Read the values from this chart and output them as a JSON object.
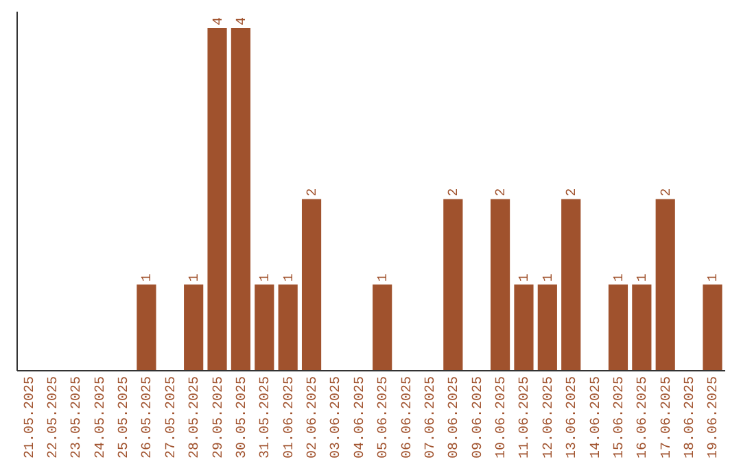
{
  "chart_data": {
    "type": "bar",
    "categories": [
      "21.05.2025",
      "22.05.2025",
      "23.05.2025",
      "24.05.2025",
      "25.05.2025",
      "26.05.2025",
      "27.05.2025",
      "28.05.2025",
      "29.05.2025",
      "30.05.2025",
      "31.05.2025",
      "01.06.2025",
      "02.06.2025",
      "03.06.2025",
      "04.06.2025",
      "05.06.2025",
      "06.06.2025",
      "07.06.2025",
      "08.06.2025",
      "09.06.2025",
      "10.06.2025",
      "11.06.2025",
      "12.06.2025",
      "13.06.2025",
      "14.06.2025",
      "15.06.2025",
      "16.06.2025",
      "17.06.2025",
      "18.06.2025",
      "19.06.2025"
    ],
    "values": [
      0,
      0,
      0,
      0,
      0,
      1,
      0,
      1,
      4,
      4,
      1,
      1,
      2,
      0,
      0,
      1,
      0,
      0,
      2,
      0,
      2,
      1,
      1,
      2,
      0,
      1,
      1,
      2,
      0,
      1
    ],
    "value_labels": [
      null,
      null,
      null,
      null,
      null,
      "1",
      null,
      "1",
      "4",
      "4",
      "1",
      "1",
      "2",
      null,
      null,
      "1",
      null,
      null,
      "2",
      null,
      "2",
      "1",
      "1",
      "2",
      null,
      "1",
      "1",
      "2",
      null,
      "1"
    ],
    "color": "#a0522d",
    "ylim": [
      0,
      4.2
    ],
    "tick_labels": "x",
    "grid": false
  }
}
